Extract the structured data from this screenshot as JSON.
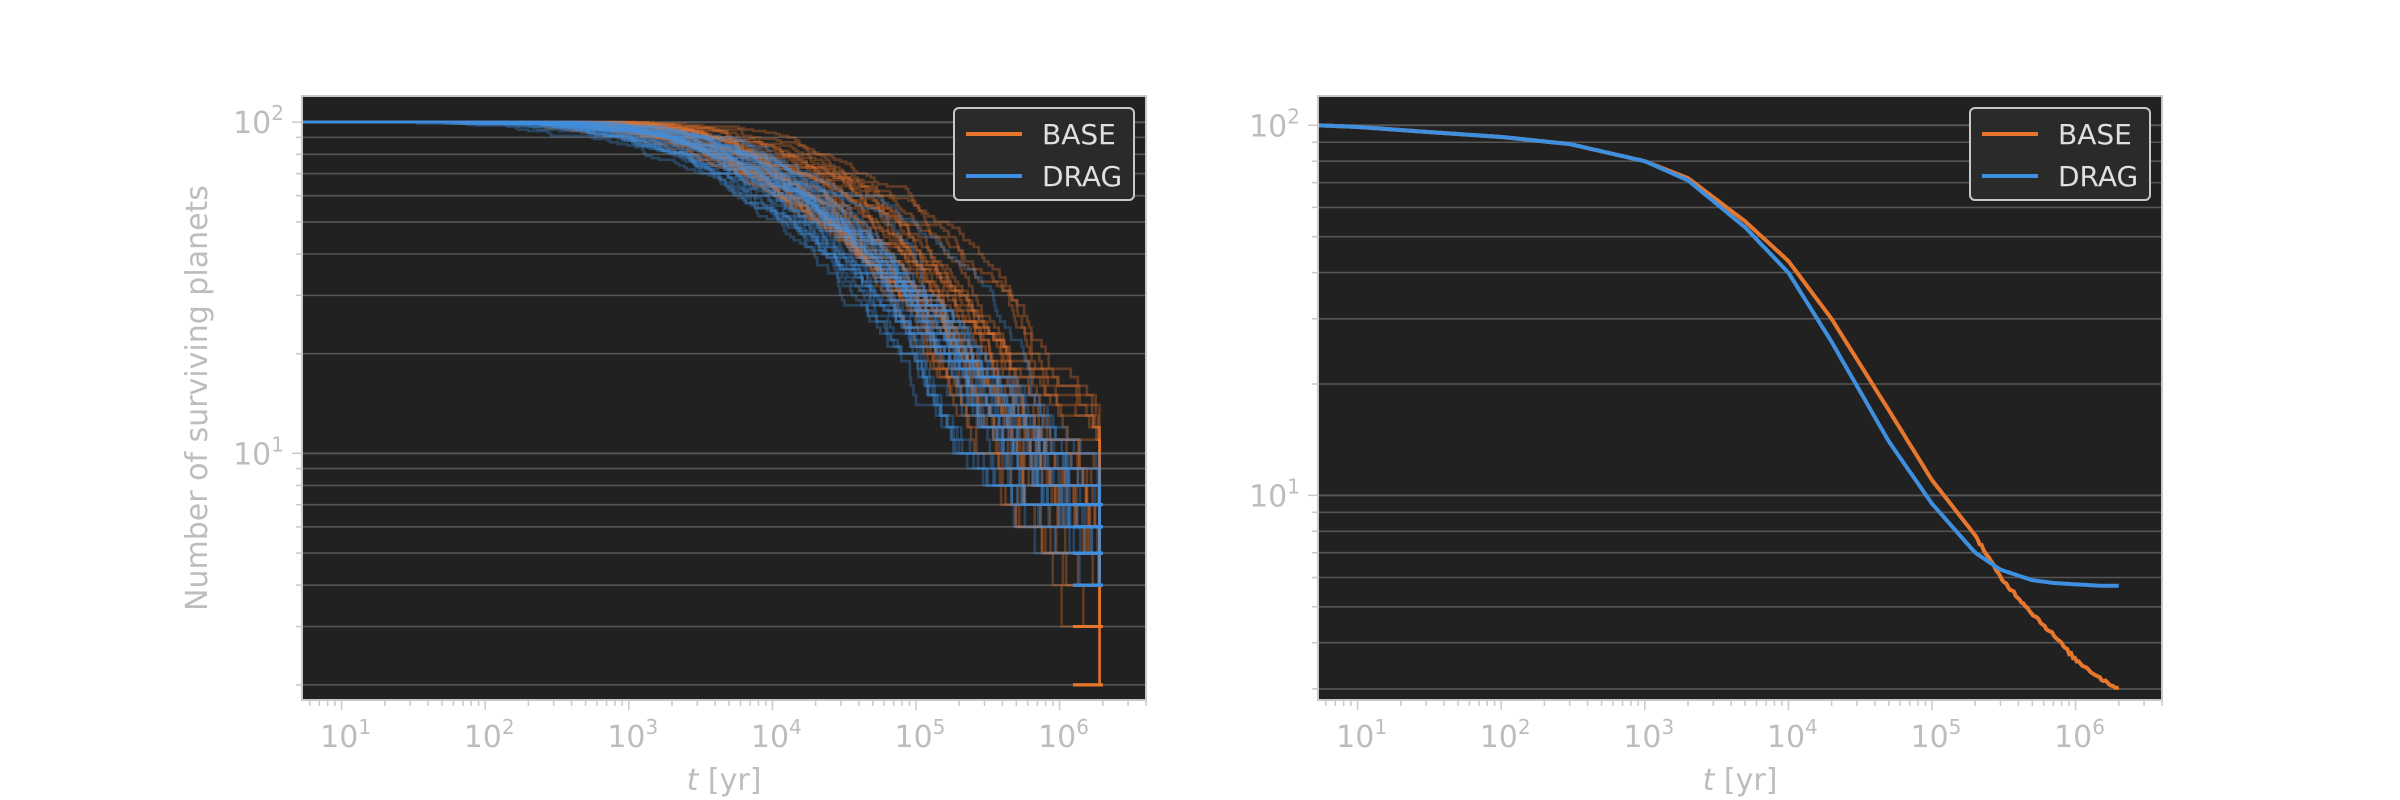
{
  "colors": {
    "base": "#e8772e",
    "drag": "#3f8fe0",
    "plot_bg": "#212121",
    "grid": "#555555",
    "text": "#bdbdbd",
    "legend_bg": "#2a2a2a",
    "legend_text": "#e0e0e0"
  },
  "chart_data": [
    {
      "type": "line",
      "xlabel": "t [yr]",
      "ylabel": "Number of surviving planets",
      "xscale": "log",
      "yscale": "log",
      "xlim": [
        5.3,
        4000000
      ],
      "ylim": [
        1.8,
        120
      ],
      "x_ticks": [
        10,
        100,
        1000,
        10000,
        100000,
        1000000
      ],
      "x_tick_labels": [
        {
          "base": "10",
          "exp": "1"
        },
        {
          "base": "10",
          "exp": "2"
        },
        {
          "base": "10",
          "exp": "3"
        },
        {
          "base": "10",
          "exp": "4"
        },
        {
          "base": "10",
          "exp": "5"
        },
        {
          "base": "10",
          "exp": "6"
        }
      ],
      "y_ticks": [
        10,
        100
      ],
      "y_tick_labels": [
        {
          "base": "10",
          "exp": "1"
        },
        {
          "base": "10",
          "exp": "2"
        }
      ],
      "grid": "horizontal",
      "legend": "top-right",
      "series": [
        {
          "name": "BASE",
          "kind": "ensemble",
          "runs": 30,
          "line_alpha": 0.32,
          "median_t50": 40000,
          "final_values": [
            2,
            2,
            2,
            3,
            3,
            3,
            4,
            4,
            4,
            5,
            5,
            5,
            6,
            6,
            7
          ]
        },
        {
          "name": "DRAG",
          "kind": "ensemble",
          "runs": 30,
          "line_alpha": 0.32,
          "median_t50": 22000,
          "final_values": [
            4,
            4,
            5,
            5,
            5,
            6,
            6,
            6,
            6,
            7,
            7,
            7,
            5,
            4,
            6
          ]
        }
      ]
    },
    {
      "type": "line",
      "xlabel": "t [yr]",
      "ylabel": "",
      "xscale": "log",
      "yscale": "log",
      "xlim": [
        5.3,
        4000000
      ],
      "ylim": [
        2.8,
        120
      ],
      "x_ticks": [
        10,
        100,
        1000,
        10000,
        100000,
        1000000
      ],
      "x_tick_labels": [
        {
          "base": "10",
          "exp": "1"
        },
        {
          "base": "10",
          "exp": "2"
        },
        {
          "base": "10",
          "exp": "3"
        },
        {
          "base": "10",
          "exp": "4"
        },
        {
          "base": "10",
          "exp": "5"
        },
        {
          "base": "10",
          "exp": "6"
        }
      ],
      "y_ticks": [
        10,
        100
      ],
      "y_tick_labels": [
        {
          "base": "10",
          "exp": "1"
        },
        {
          "base": "10",
          "exp": "2"
        }
      ],
      "grid": "horizontal",
      "legend": "top-right",
      "series": [
        {
          "name": "BASE",
          "kind": "mean",
          "x": [
            5.3,
            10,
            30,
            100,
            300,
            1000,
            2000,
            5000,
            10000,
            20000,
            50000,
            100000,
            200000,
            300000,
            500000,
            700000,
            1000000,
            1500000,
            2000000
          ],
          "y": [
            100,
            99,
            96,
            93,
            89,
            80,
            72,
            55,
            43,
            30,
            17,
            11,
            7.8,
            6.0,
            4.8,
            4.2,
            3.6,
            3.2,
            3.0
          ]
        },
        {
          "name": "DRAG",
          "kind": "mean",
          "x": [
            5.3,
            10,
            30,
            100,
            300,
            1000,
            2000,
            5000,
            10000,
            20000,
            50000,
            100000,
            200000,
            300000,
            500000,
            700000,
            1000000,
            1500000,
            2000000
          ],
          "y": [
            100,
            99,
            96,
            93,
            89,
            80,
            71,
            53,
            40,
            26,
            14,
            9.5,
            7.0,
            6.3,
            5.9,
            5.8,
            5.75,
            5.7,
            5.7
          ]
        }
      ]
    }
  ]
}
